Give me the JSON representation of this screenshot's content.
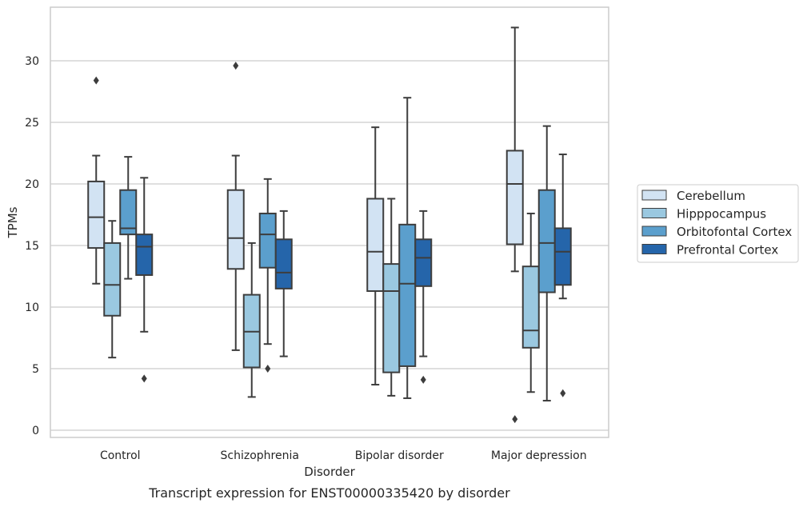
{
  "caption": "Transcript expression for ENST00000335420 by disorder",
  "chart_data": {
    "type": "boxplot",
    "title": "",
    "xlabel": "Disorder",
    "ylabel": "TPMs",
    "ylim": [
      -0.7,
      33.9
    ],
    "yticks": [
      0,
      5,
      10,
      15,
      20,
      25,
      30
    ],
    "grid": "horizontal",
    "legend_position": "right",
    "categories": [
      "Control",
      "Schizophrenia",
      "Bipolar disorder",
      "Major depression"
    ],
    "colors": [
      "#d2e3f3",
      "#9ac8e0",
      "#5b9fcd",
      "#2565aa"
    ],
    "series": [
      {
        "name": "Cerebellum",
        "boxes": [
          {
            "whislo": 11.9,
            "q1": 14.8,
            "med": 17.3,
            "q3": 20.2,
            "whishi": 22.3,
            "fliers": [
              28.4
            ]
          },
          {
            "whislo": 6.5,
            "q1": 13.1,
            "med": 15.6,
            "q3": 19.5,
            "whishi": 22.3,
            "fliers": [
              29.6
            ]
          },
          {
            "whislo": 3.7,
            "q1": 11.3,
            "med": 14.5,
            "q3": 18.8,
            "whishi": 24.6,
            "fliers": []
          },
          {
            "whislo": 12.9,
            "q1": 15.1,
            "med": 20.0,
            "q3": 22.7,
            "whishi": 32.7,
            "fliers": [
              0.9
            ]
          }
        ]
      },
      {
        "name": "Hipppocampus",
        "boxes": [
          {
            "whislo": 5.9,
            "q1": 9.3,
            "med": 11.8,
            "q3": 15.2,
            "whishi": 17.0,
            "fliers": []
          },
          {
            "whislo": 2.7,
            "q1": 5.1,
            "med": 8.0,
            "q3": 11.0,
            "whishi": 15.2,
            "fliers": []
          },
          {
            "whislo": 2.8,
            "q1": 4.7,
            "med": 11.3,
            "q3": 13.5,
            "whishi": 18.8,
            "fliers": []
          },
          {
            "whislo": 3.1,
            "q1": 6.7,
            "med": 8.1,
            "q3": 13.3,
            "whishi": 17.6,
            "fliers": []
          }
        ]
      },
      {
        "name": "Orbitofontal Cortex",
        "boxes": [
          {
            "whislo": 12.3,
            "q1": 15.9,
            "med": 16.4,
            "q3": 19.5,
            "whishi": 22.2,
            "fliers": []
          },
          {
            "whislo": 7.0,
            "q1": 13.2,
            "med": 15.9,
            "q3": 17.6,
            "whishi": 20.4,
            "fliers": [
              5.0
            ]
          },
          {
            "whislo": 2.6,
            "q1": 5.2,
            "med": 11.9,
            "q3": 16.7,
            "whishi": 27.0,
            "fliers": []
          },
          {
            "whislo": 2.4,
            "q1": 11.2,
            "med": 15.2,
            "q3": 19.5,
            "whishi": 24.7,
            "fliers": []
          }
        ]
      },
      {
        "name": "Prefrontal Cortex",
        "boxes": [
          {
            "whislo": 8.0,
            "q1": 12.6,
            "med": 14.9,
            "q3": 15.9,
            "whishi": 20.5,
            "fliers": [
              4.2
            ]
          },
          {
            "whislo": 6.0,
            "q1": 11.5,
            "med": 12.8,
            "q3": 15.5,
            "whishi": 17.8,
            "fliers": []
          },
          {
            "whislo": 6.0,
            "q1": 11.7,
            "med": 14.0,
            "q3": 15.5,
            "whishi": 17.8,
            "fliers": [
              4.1
            ]
          },
          {
            "whislo": 10.7,
            "q1": 11.8,
            "med": 14.5,
            "q3": 16.4,
            "whishi": 22.4,
            "fliers": [
              3.0
            ]
          }
        ]
      }
    ]
  }
}
